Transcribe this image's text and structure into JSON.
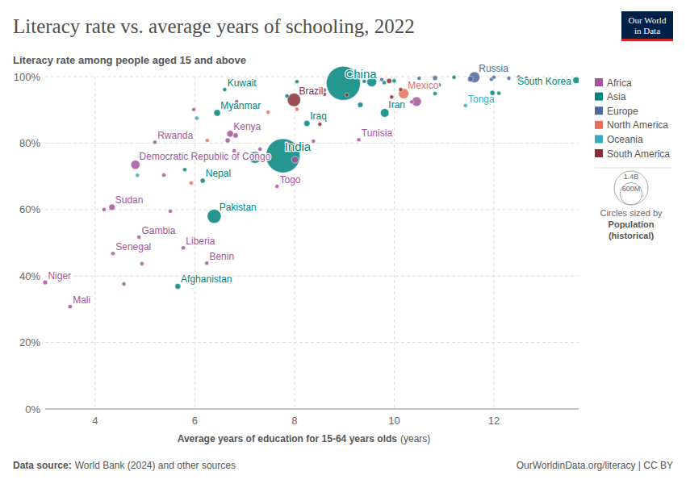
{
  "chart_data": {
    "type": "scatter",
    "title": "Literacy rate vs. average years of schooling, 2022",
    "subtitle": "Literacy rate among people aged 15 and above",
    "x_label": "Average years of education for 15-64 years olds",
    "x_label_unit": "(years)",
    "source_label": "Data source:",
    "source": "World Bank (2024) and other sources",
    "footer": "OurWorldinData.org/literacy | CC BY",
    "logo": [
      "Our World",
      "in Data"
    ],
    "xlim": [
      3,
      13.7
    ],
    "xticks": [
      4,
      6,
      8,
      10,
      12
    ],
    "ylim": [
      0,
      100
    ],
    "yticks": [
      {
        "value": 0,
        "label": "0%"
      },
      {
        "value": 20,
        "label": "20%"
      },
      {
        "value": 40,
        "label": "40%"
      },
      {
        "value": 60,
        "label": "60%"
      },
      {
        "value": 80,
        "label": "80%"
      },
      {
        "value": 100,
        "label": "100%"
      }
    ],
    "grid": true,
    "legend": "right",
    "size_legend": {
      "title": "Circles sized by",
      "name": "Population",
      "note": "(historical)",
      "values": [
        1400000000,
        600000000
      ],
      "labels": [
        "1.4B",
        "600M"
      ]
    },
    "series": [
      {
        "name": "Africa",
        "color": "#a2559c",
        "x": [
          3.0,
          3.5,
          4.36,
          4.88,
          4.34,
          5.2,
          4.81,
          6.71,
          5.77,
          6.24,
          7.65,
          9.29,
          4.18,
          5.98,
          6.66,
          6.82,
          6.84,
          6.79,
          7.31,
          7.45,
          8.38,
          4.94,
          4.58,
          5.51,
          5.38,
          8.01,
          10.45,
          8.6,
          10.35
        ],
        "values": [
          38.1,
          30.8,
          46.8,
          51.7,
          60.7,
          80.3,
          73.5,
          82.8,
          48.5,
          43.9,
          67,
          81,
          60,
          90.1,
          80.8,
          82.3,
          92.5,
          77.7,
          78.2,
          76,
          80.6,
          43.7,
          37.6,
          59.5,
          70.4,
          75,
          92.5,
          96,
          92.4
        ],
        "sizes": [
          26000000,
          22000000,
          17000000,
          2700000,
          47000000,
          14000000,
          99000000,
          54000000,
          5300000,
          13000000,
          9000000,
          12000000,
          12000000,
          12000000,
          30000000,
          33000000,
          2000000,
          20000000,
          18000000,
          10000000,
          15000000,
          4000000,
          5000000,
          3000000,
          6000000,
          60000000,
          110000000,
          2000000,
          8000000
        ],
        "labels": [
          "Niger",
          "Mali",
          "Senegal",
          "Gambia",
          "Sudan",
          "Rwanda",
          "Democratic Republic of Congo",
          "Kenya",
          "Liberia",
          "Benin",
          "Togo",
          "Tunisia",
          null,
          null,
          null,
          null,
          null,
          null,
          null,
          null,
          null,
          null,
          null,
          null,
          null,
          null,
          null,
          null,
          null
        ]
      },
      {
        "name": "Asia",
        "color": "#00847e",
        "x": [
          5.66,
          6.39,
          6.16,
          7.77,
          6.45,
          6.6,
          8.25,
          8.98,
          9.81,
          13.65,
          5.8,
          9.32,
          8.05,
          9.8,
          10.82,
          10.9,
          11.2,
          11.97,
          12.1,
          10.0,
          9.4,
          7.85,
          7.21,
          9.55
        ],
        "values": [
          36.9,
          58,
          68.7,
          76.2,
          89.1,
          96.1,
          85.9,
          98,
          89.1,
          98.9,
          72,
          91.5,
          98.5,
          98.2,
          94.9,
          97.5,
          99.8,
          95.1,
          95,
          98.7,
          98.6,
          94.2,
          75.7,
          98.4
        ],
        "sizes": [
          41000000,
          236000000,
          30000000,
          1420000000,
          54000000,
          4300000,
          44000000,
          1410000000,
          89000000,
          52000000,
          3000000,
          35000000,
          3000000,
          10000000,
          20000000,
          5000000,
          6000000,
          30000000,
          6000000,
          10000000,
          8000000,
          2000000,
          170000000,
          115000000
        ],
        "labels": [
          "Afghanistan",
          "Pakistan",
          "Nepal",
          "India",
          "Myanmar",
          "Kuwait",
          "Iraq",
          "China",
          "Iran",
          "South Korea",
          null,
          null,
          null,
          null,
          null,
          null,
          null,
          null,
          null,
          null,
          null,
          null,
          null,
          null
        ]
      },
      {
        "name": "Europe",
        "color": "#4c6a9c",
        "x": [
          11.61,
          11.53,
          12.0,
          12.3,
          12.5,
          10.82,
          10.5,
          11.95,
          9.75,
          12.65
        ],
        "values": [
          99.8,
          99.3,
          99.8,
          99.5,
          99.9,
          99.6,
          99.5,
          99.2,
          99.1,
          99.5
        ],
        "sizes": [
          145000000,
          40000000,
          10000000,
          5000000,
          4000000,
          30000000,
          4000000,
          19000000,
          3000000,
          2000000
        ],
        "labels": [
          "Russia",
          null,
          null,
          null,
          null,
          null,
          null,
          null,
          null,
          null
        ]
      },
      {
        "name": "North America",
        "color": "#e56e5a",
        "x": [
          10.19,
          5.93,
          6.25,
          7.47,
          8.05
        ],
        "values": [
          94.9,
          68,
          80.8,
          89.3,
          90.2
        ],
        "sizes": [
          127000000,
          11000000,
          10000000,
          17000000,
          6000000
        ],
        "labels": [
          "Mexico",
          null,
          null,
          null,
          null
        ]
      },
      {
        "name": "Oceania",
        "color": "#38aaba",
        "x": [
          11.43,
          4.85,
          6.04
        ],
        "values": [
          91.3,
          70.3,
          87.5
        ],
        "sizes": [
          100000,
          10000000,
          1000000
        ],
        "labels": [
          "Tonga",
          null,
          null
        ]
      },
      {
        "name": "South America",
        "color": "#883039",
        "x": [
          7.99,
          8.51,
          9.95,
          8.6,
          10.13,
          9.05,
          9.9
        ],
        "values": [
          93,
          85.7,
          93.9,
          94.7,
          96.1,
          94.5,
          98.7
        ],
        "sizes": [
          215000000,
          3000000,
          12000000,
          5000000,
          7000000,
          20000000,
          33000000
        ],
        "labels": [
          "Brazil",
          null,
          null,
          null,
          null,
          null,
          null
        ]
      }
    ]
  }
}
